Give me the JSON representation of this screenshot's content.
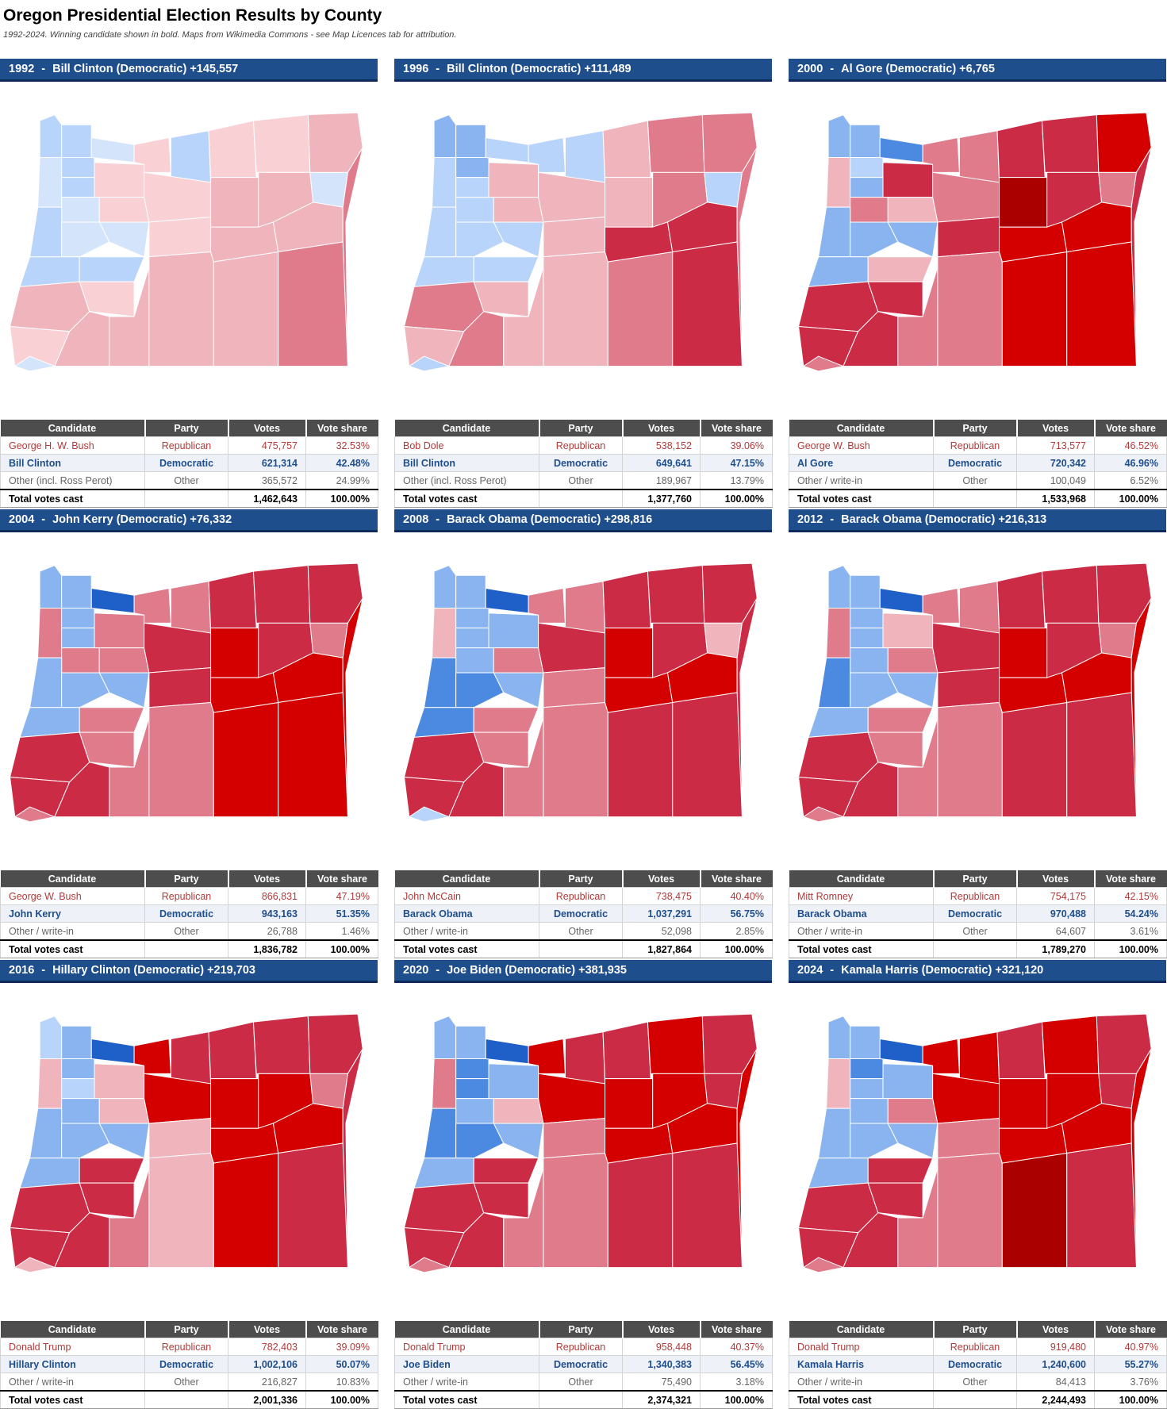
{
  "page": {
    "title": "Oregon Presidential Election Results by County",
    "subtitle": "1992-2024. Winning candidate shown in bold. Maps from Wikimedia Commons - see Map Licences tab for attribution."
  },
  "colors": {
    "header_bg": "#1f4e8c",
    "table_header_bg": "#4d4d4d",
    "republican_text": "#b03a3a",
    "democratic_text": "#1f4e8c",
    "map_scale": {
      "R5": "#aa0000",
      "R4": "#d40000",
      "R3": "#cc2b45",
      "R2": "#e07b8c",
      "R1": "#f0b4bc",
      "R0": "#f9d0d4",
      "D0": "#d3e4fb",
      "D1": "#b9d4fa",
      "D2": "#89b4ef",
      "D3": "#4b8ae0",
      "D4": "#1f60c8"
    }
  },
  "chart_data": [
    {
      "type": "table",
      "year": "1992",
      "header": {
        "year": "1992",
        "sep": "-",
        "winner": "Bill Clinton (Democratic) +145,557"
      },
      "columns": [
        "Candidate",
        "Party",
        "Votes",
        "Vote share"
      ],
      "rows": [
        {
          "kind": "rep",
          "candidate": "George H. W. Bush",
          "party": "Republican",
          "votes": "475,757",
          "share": "32.53%"
        },
        {
          "kind": "dem",
          "candidate": "Bill Clinton",
          "party": "Democratic",
          "votes": "621,314",
          "share": "42.48%"
        },
        {
          "kind": "oth",
          "candidate": "Other (incl. Ross Perot)",
          "party": "Other",
          "votes": "365,572",
          "share": "24.99%"
        },
        {
          "kind": "tot",
          "candidate": "Total votes cast",
          "party": "",
          "votes": "1,462,643",
          "share": "100.00%"
        }
      ],
      "map": [
        "D1",
        "D1",
        "D0",
        "D1",
        "D0",
        "D1",
        "R0",
        "R0",
        "D1",
        "R0",
        "R0",
        "R1",
        "D0",
        "R0",
        "D1",
        "R0",
        "R1",
        "R1",
        "D0",
        "D0",
        "D0",
        "R0",
        "D1",
        "D1",
        "R1",
        "R0",
        "R0",
        "R1",
        "R1",
        "R1",
        "R1",
        "R1",
        "R1",
        "R2",
        "R2",
        "D0"
      ]
    },
    {
      "type": "table",
      "year": "1996",
      "header": {
        "year": "1996",
        "sep": "-",
        "winner": "Bill Clinton (Democratic) +111,489"
      },
      "columns": [
        "Candidate",
        "Party",
        "Votes",
        "Vote share"
      ],
      "rows": [
        {
          "kind": "rep",
          "candidate": "Bob Dole",
          "party": "Republican",
          "votes": "538,152",
          "share": "39.06%"
        },
        {
          "kind": "dem",
          "candidate": "Bill Clinton",
          "party": "Democratic",
          "votes": "649,641",
          "share": "47.15%"
        },
        {
          "kind": "oth",
          "candidate": "Other (incl. Ross Perot)",
          "party": "Other",
          "votes": "189,967",
          "share": "13.79%"
        },
        {
          "kind": "tot",
          "candidate": "Total votes cast",
          "party": "",
          "votes": "1,377,760",
          "share": "100.00%"
        }
      ],
      "map": [
        "D2",
        "D2",
        "D1",
        "D2",
        "D1",
        "D1",
        "R1",
        "D1",
        "D1",
        "R1",
        "R2",
        "R2",
        "D1",
        "R1",
        "D1",
        "R1",
        "R1",
        "R2",
        "D1",
        "D1",
        "D1",
        "R1",
        "D1",
        "D1",
        "R2",
        "R1",
        "R1",
        "R2",
        "R1",
        "R1",
        "R2",
        "R3",
        "R3",
        "R2",
        "R3",
        "D1"
      ]
    },
    {
      "type": "table",
      "year": "2000",
      "header": {
        "year": "2000",
        "sep": "-",
        "winner": "Al Gore (Democratic) +6,765"
      },
      "columns": [
        "Candidate",
        "Party",
        "Votes",
        "Vote share"
      ],
      "rows": [
        {
          "kind": "rep",
          "candidate": "George W. Bush",
          "party": "Republican",
          "votes": "713,577",
          "share": "46.52%"
        },
        {
          "kind": "dem",
          "candidate": "Al Gore",
          "party": "Democratic",
          "votes": "720,342",
          "share": "46.96%"
        },
        {
          "kind": "oth",
          "candidate": "Other / write-in",
          "party": "Other",
          "votes": "100,049",
          "share": "6.52%"
        },
        {
          "kind": "tot",
          "candidate": "Total votes cast",
          "party": "",
          "votes": "1,533,968",
          "share": "100.00%"
        }
      ],
      "map": [
        "D2",
        "D2",
        "R1",
        "D1",
        "D3",
        "D2",
        "R3",
        "R2",
        "R2",
        "R3",
        "R3",
        "R4",
        "R2",
        "R1",
        "D2",
        "R2",
        "R5",
        "R3",
        "R2",
        "D2",
        "D2",
        "R3",
        "D2",
        "R1",
        "R3",
        "R3",
        "R3",
        "R3",
        "R2",
        "R2",
        "R4",
        "R4",
        "R4",
        "R3",
        "R4",
        "R2"
      ]
    },
    {
      "type": "table",
      "year": "2004",
      "header": {
        "year": "2004",
        "sep": "-",
        "winner": "John Kerry (Democratic) +76,332"
      },
      "columns": [
        "Candidate",
        "Party",
        "Votes",
        "Vote share"
      ],
      "rows": [
        {
          "kind": "rep",
          "candidate": "George W. Bush",
          "party": "Republican",
          "votes": "866,831",
          "share": "47.19%"
        },
        {
          "kind": "dem",
          "candidate": "John Kerry",
          "party": "Democratic",
          "votes": "943,163",
          "share": "51.35%"
        },
        {
          "kind": "oth",
          "candidate": "Other / write-in",
          "party": "Other",
          "votes": "26,788",
          "share": "1.46%"
        },
        {
          "kind": "tot",
          "candidate": "Total votes cast",
          "party": "",
          "votes": "1,836,782",
          "share": "100.00%"
        }
      ],
      "map": [
        "D2",
        "D2",
        "R2",
        "D2",
        "D4",
        "D2",
        "R2",
        "R2",
        "R2",
        "R3",
        "R3",
        "R3",
        "R2",
        "R2",
        "D2",
        "R3",
        "R4",
        "R3",
        "R2",
        "D2",
        "D2",
        "R3",
        "D2",
        "R2",
        "R3",
        "R2",
        "R3",
        "R3",
        "R2",
        "R2",
        "R4",
        "R4",
        "R4",
        "R4",
        "R4",
        "R2"
      ]
    },
    {
      "type": "table",
      "year": "2008",
      "header": {
        "year": "2008",
        "sep": "-",
        "winner": "Barack Obama (Democratic) +298,816"
      },
      "columns": [
        "Candidate",
        "Party",
        "Votes",
        "Vote share"
      ],
      "rows": [
        {
          "kind": "rep",
          "candidate": "John McCain",
          "party": "Republican",
          "votes": "738,475",
          "share": "40.40%"
        },
        {
          "kind": "dem",
          "candidate": "Barack Obama",
          "party": "Democratic",
          "votes": "1,037,291",
          "share": "56.75%"
        },
        {
          "kind": "oth",
          "candidate": "Other / write-in",
          "party": "Other",
          "votes": "52,098",
          "share": "2.85%"
        },
        {
          "kind": "tot",
          "candidate": "Total votes cast",
          "party": "",
          "votes": "1,827,864",
          "share": "100.00%"
        }
      ],
      "map": [
        "D2",
        "D2",
        "R1",
        "D2",
        "D4",
        "D2",
        "D2",
        "R2",
        "R2",
        "R3",
        "R3",
        "R3",
        "D2",
        "R2",
        "D3",
        "R3",
        "R4",
        "R3",
        "R1",
        "D3",
        "D2",
        "R2",
        "D3",
        "R2",
        "R3",
        "R2",
        "R3",
        "R3",
        "R2",
        "R2",
        "R3",
        "R4",
        "R4",
        "R3",
        "R3",
        "D1"
      ]
    },
    {
      "type": "table",
      "year": "2012",
      "header": {
        "year": "2012",
        "sep": "-",
        "winner": "Barack Obama (Democratic) +216,313"
      },
      "columns": [
        "Candidate",
        "Party",
        "Votes",
        "Vote share"
      ],
      "rows": [
        {
          "kind": "rep",
          "candidate": "Mitt Romney",
          "party": "Republican",
          "votes": "754,175",
          "share": "42.15%"
        },
        {
          "kind": "dem",
          "candidate": "Barack Obama",
          "party": "Democratic",
          "votes": "970,488",
          "share": "54.24%"
        },
        {
          "kind": "oth",
          "candidate": "Other / write-in",
          "party": "Other",
          "votes": "64,607",
          "share": "3.61%"
        },
        {
          "kind": "tot",
          "candidate": "Total votes cast",
          "party": "",
          "votes": "1,789,270",
          "share": "100.00%"
        }
      ],
      "map": [
        "D2",
        "D2",
        "R2",
        "D2",
        "D4",
        "D2",
        "R1",
        "R2",
        "R2",
        "R3",
        "R3",
        "R3",
        "D2",
        "R2",
        "D3",
        "R3",
        "R4",
        "R3",
        "R2",
        "D2",
        "D2",
        "R3",
        "D2",
        "R2",
        "R3",
        "R2",
        "R3",
        "R3",
        "R2",
        "R2",
        "R3",
        "R4",
        "R4",
        "R4",
        "R3",
        "R2"
      ]
    },
    {
      "type": "table",
      "year": "2016",
      "header": {
        "year": "2016",
        "sep": "-",
        "winner": "Hillary Clinton (Democratic) +219,703"
      },
      "columns": [
        "Candidate",
        "Party",
        "Votes",
        "Vote share"
      ],
      "rows": [
        {
          "kind": "rep",
          "candidate": "Donald Trump",
          "party": "Republican",
          "votes": "782,403",
          "share": "39.09%"
        },
        {
          "kind": "dem",
          "candidate": "Hillary Clinton",
          "party": "Democratic",
          "votes": "1,002,106",
          "share": "50.07%"
        },
        {
          "kind": "oth",
          "candidate": "Other / write-in",
          "party": "Other",
          "votes": "216,827",
          "share": "10.83%"
        },
        {
          "kind": "tot",
          "candidate": "Total votes cast",
          "party": "",
          "votes": "2,001,336",
          "share": "100.00%"
        }
      ],
      "map": [
        "D1",
        "D2",
        "R1",
        "D2",
        "D4",
        "D1",
        "R1",
        "R4",
        "R3",
        "R3",
        "R3",
        "R3",
        "D2",
        "R1",
        "D2",
        "R4",
        "R4",
        "R4",
        "R2",
        "D2",
        "D2",
        "R1",
        "D2",
        "R3",
        "R3",
        "R3",
        "R3",
        "R3",
        "R2",
        "R1",
        "R4",
        "R4",
        "R4",
        "R3",
        "R3",
        "R1"
      ]
    },
    {
      "type": "table",
      "year": "2020",
      "header": {
        "year": "2020",
        "sep": "-",
        "winner": "Joe Biden (Democratic) +381,935"
      },
      "columns": [
        "Candidate",
        "Party",
        "Votes",
        "Vote share"
      ],
      "rows": [
        {
          "kind": "rep",
          "candidate": "Donald Trump",
          "party": "Republican",
          "votes": "958,448",
          "share": "40.37%"
        },
        {
          "kind": "dem",
          "candidate": "Joe Biden",
          "party": "Democratic",
          "votes": "1,340,383",
          "share": "56.45%"
        },
        {
          "kind": "oth",
          "candidate": "Other / write-in",
          "party": "Other",
          "votes": "75,490",
          "share": "3.18%"
        },
        {
          "kind": "tot",
          "candidate": "Total votes cast",
          "party": "",
          "votes": "2,374,321",
          "share": "100.00%"
        }
      ],
      "map": [
        "D2",
        "D2",
        "R2",
        "D3",
        "D4",
        "D3",
        "D2",
        "R4",
        "R3",
        "R3",
        "R4",
        "R3",
        "D2",
        "R1",
        "D3",
        "R4",
        "R4",
        "R4",
        "R3",
        "D3",
        "D2",
        "R2",
        "D2",
        "R3",
        "R3",
        "R3",
        "R3",
        "R3",
        "R2",
        "R2",
        "R3",
        "R4",
        "R4",
        "R4",
        "R3",
        "R2"
      ]
    },
    {
      "type": "table",
      "year": "2024",
      "header": {
        "year": "2024",
        "sep": "-",
        "winner": "Kamala Harris (Democratic) +321,120"
      },
      "columns": [
        "Candidate",
        "Party",
        "Votes",
        "Vote share"
      ],
      "rows": [
        {
          "kind": "rep",
          "candidate": "Donald Trump",
          "party": "Republican",
          "votes": "919,480",
          "share": "40.97%"
        },
        {
          "kind": "dem",
          "candidate": "Kamala Harris",
          "party": "Democratic",
          "votes": "1,240,600",
          "share": "55.27%"
        },
        {
          "kind": "oth",
          "candidate": "Other / write-in",
          "party": "Other",
          "votes": "84,413",
          "share": "3.76%"
        },
        {
          "kind": "tot",
          "candidate": "Total votes cast",
          "party": "",
          "votes": "2,244,493",
          "share": "100.00%"
        }
      ],
      "map": [
        "D2",
        "D2",
        "R1",
        "D3",
        "D4",
        "D2",
        "D2",
        "R4",
        "R4",
        "R3",
        "R4",
        "R3",
        "D2",
        "R2",
        "D2",
        "R4",
        "R4",
        "R4",
        "R3",
        "D2",
        "D2",
        "R2",
        "D2",
        "R3",
        "R3",
        "R3",
        "R3",
        "R3",
        "R2",
        "R2",
        "R5",
        "R4",
        "R4",
        "R4",
        "R3",
        "R2"
      ]
    }
  ]
}
